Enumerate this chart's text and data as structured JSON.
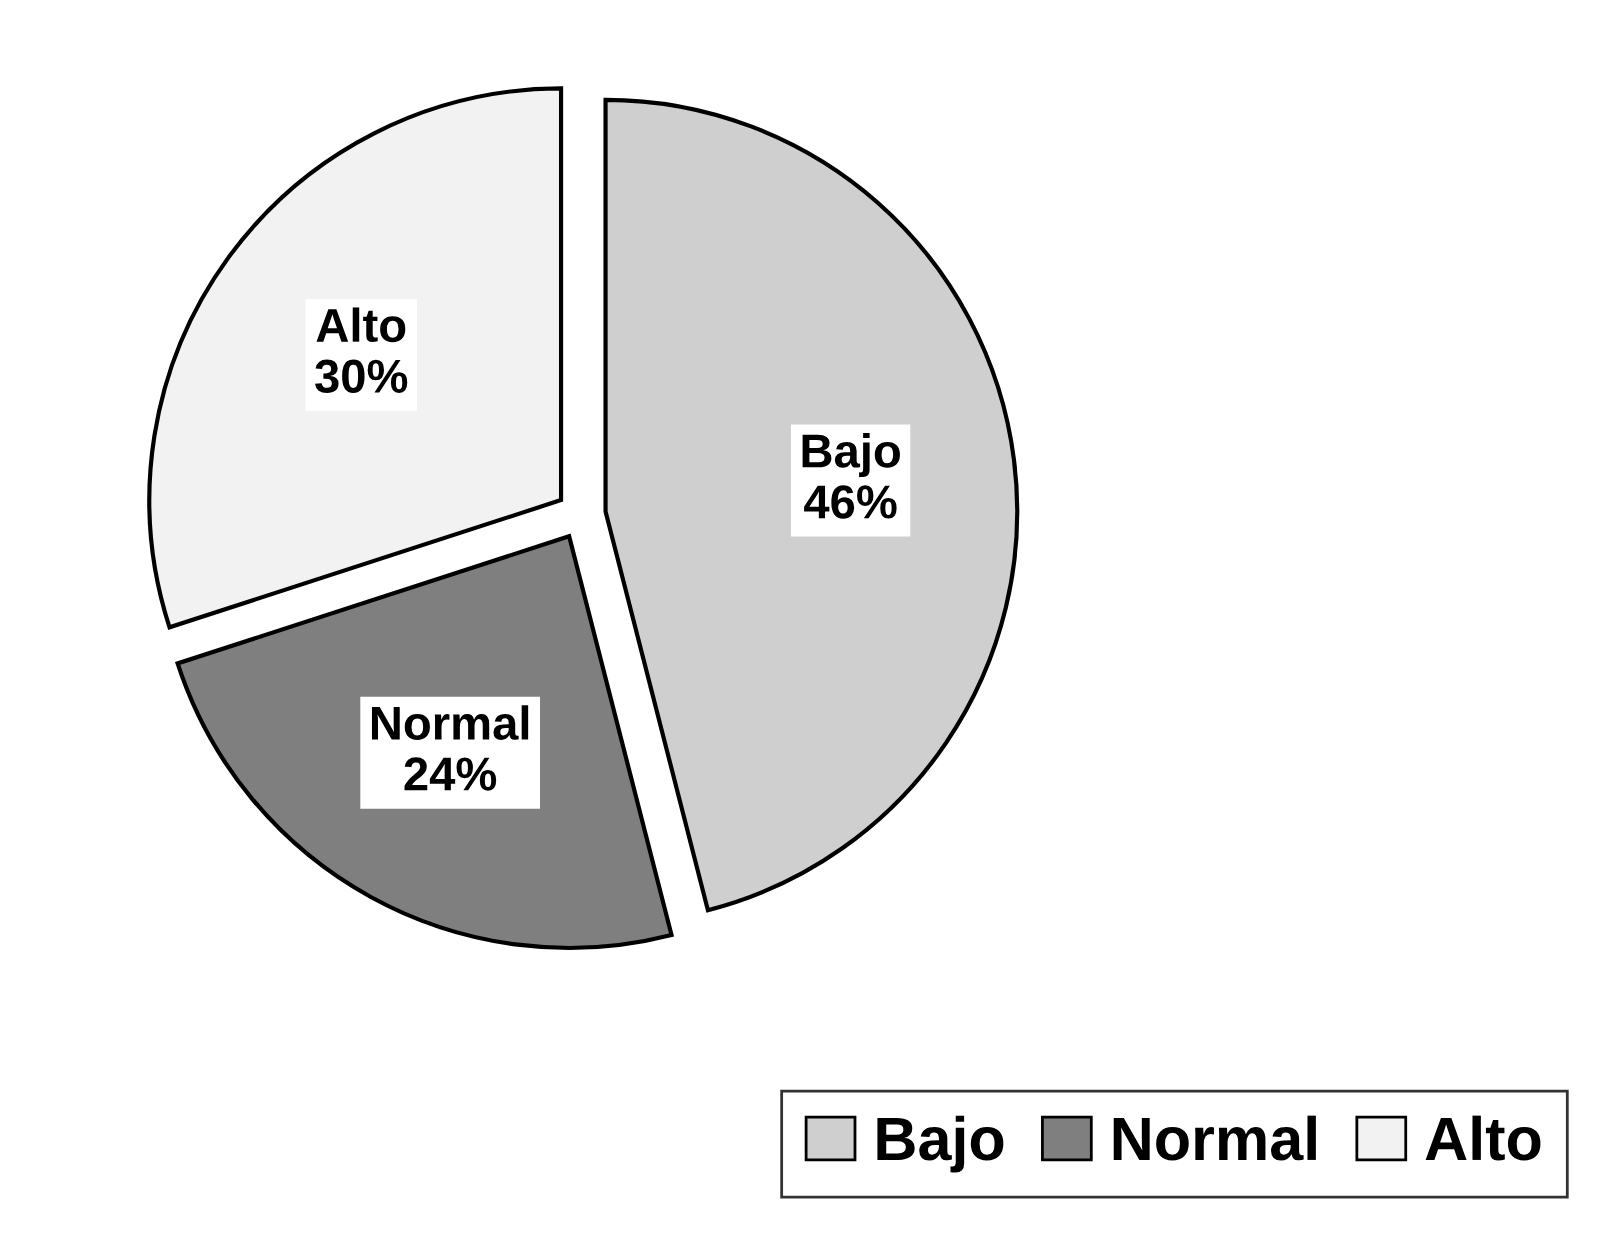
{
  "chart_data": {
    "type": "pie",
    "categories": [
      "Bajo",
      "Normal",
      "Alto"
    ],
    "values": [
      46,
      24,
      30
    ],
    "colors": [
      "#cfcfcf",
      "#7f7f7f",
      "#f2f2f2"
    ],
    "value_labels": [
      "46%",
      "24%",
      "30%"
    ],
    "legend": "bottom right"
  }
}
